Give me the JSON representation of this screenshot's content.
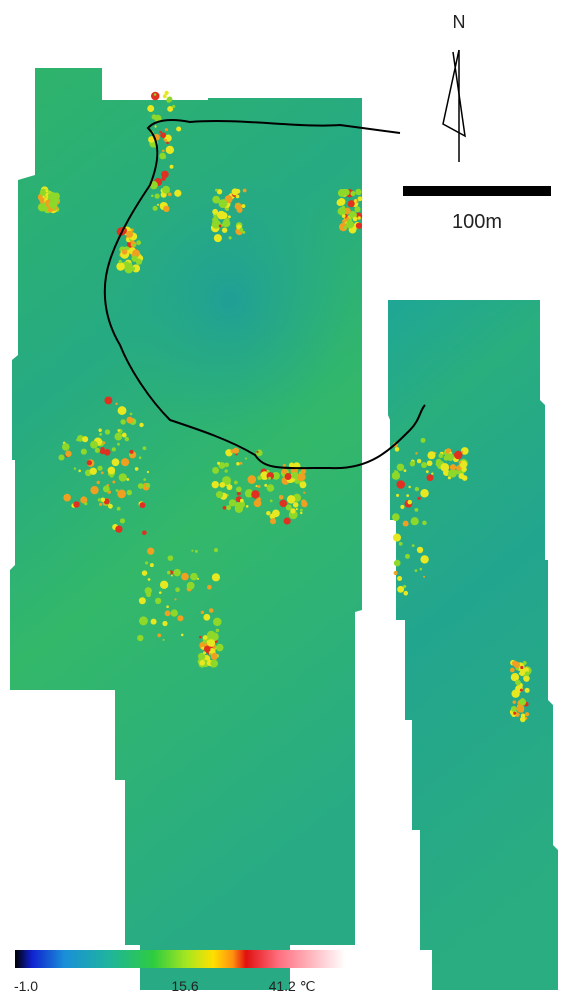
{
  "north_arrow": {
    "label": "N"
  },
  "scale_bar": {
    "label": "100m"
  },
  "colorbar": {
    "labels": [
      "-1.0",
      "15.6",
      "41.2 ℃"
    ]
  }
}
